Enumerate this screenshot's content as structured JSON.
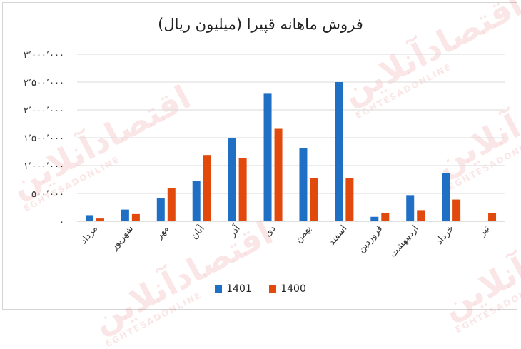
{
  "chart_data": {
    "type": "bar",
    "title": "فروش ماهانه قپیرا (میلیون ریال)",
    "categories": [
      "مرداد",
      "شهریور",
      "مهر",
      "آبان",
      "آذر",
      "دی",
      "بهمن",
      "اسفند",
      "فروردین",
      "اردیبهشت",
      "خرداد",
      "تیر"
    ],
    "series": [
      {
        "name": "1401",
        "color": "#1f6fc5",
        "values": [
          110000,
          210000,
          420000,
          720000,
          1490000,
          2290000,
          1320000,
          2500000,
          80000,
          470000,
          860000,
          0
        ]
      },
      {
        "name": "1400",
        "color": "#e14a0c",
        "values": [
          50000,
          130000,
          600000,
          1190000,
          1130000,
          1660000,
          770000,
          780000,
          150000,
          200000,
          390000,
          150000
        ]
      }
    ],
    "ylim": [
      0,
      3000000
    ],
    "yticks": [
      {
        "value": 0,
        "label": "۰"
      },
      {
        "value": 500000,
        "label": "۵۰۰٬۰۰۰"
      },
      {
        "value": 1000000,
        "label": "۱٬۰۰۰٬۰۰۰"
      },
      {
        "value": 1500000,
        "label": "۱٬۵۰۰٬۰۰۰"
      },
      {
        "value": 2000000,
        "label": "۲٬۰۰۰٬۰۰۰"
      },
      {
        "value": 2500000,
        "label": "۲٬۵۰۰٬۰۰۰"
      },
      {
        "value": 3000000,
        "label": "۳٬۰۰۰٬۰۰۰"
      }
    ],
    "grid": true,
    "legend": "bottom"
  },
  "watermark": {
    "text": "اقتصادآنلاین",
    "subtext": "EGHTESADONLINE"
  }
}
